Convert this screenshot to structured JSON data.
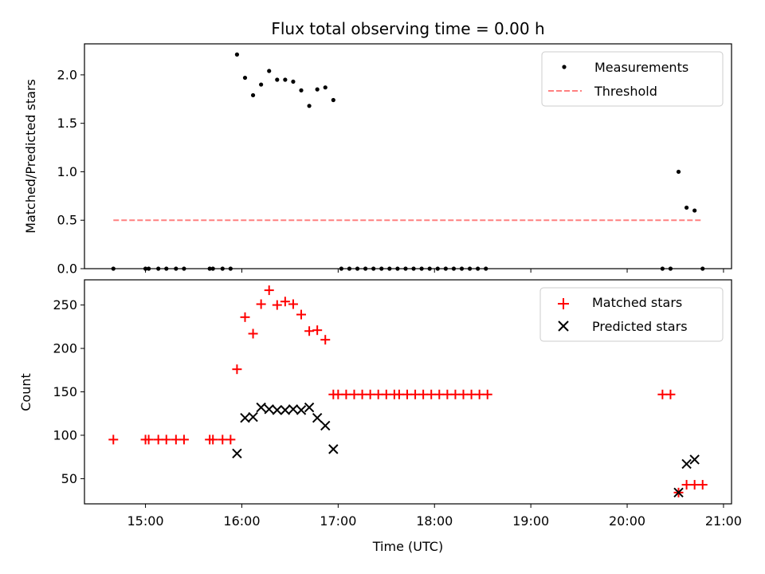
{
  "chart_data": [
    {
      "type": "scatter",
      "title": "Flux total observing time = 0.00 h",
      "xlabel": "",
      "ylabel": "Matched/Predicted stars",
      "xlim": [
        "14:22",
        "21:05"
      ],
      "ylim": [
        0,
        2.32
      ],
      "yticks": [
        0.0,
        0.5,
        1.0,
        1.5,
        2.0
      ],
      "yticklabels": [
        "0.0",
        "0.5",
        "1.0",
        "1.5",
        "2.0"
      ],
      "xticks": [
        "15:00",
        "16:00",
        "17:00",
        "18:00",
        "19:00",
        "20:00",
        "21:00"
      ],
      "xticklabels_visible": false,
      "legend_position": "top-right",
      "series": [
        {
          "name": "Measurements",
          "kind": "points",
          "color": "#000000",
          "x": [
            "14:40",
            "15:00",
            "15:02",
            "15:08",
            "15:13",
            "15:19",
            "15:24",
            "15:40",
            "15:42",
            "15:48",
            "15:53",
            "15:57",
            "16:02",
            "16:07",
            "16:12",
            "16:17",
            "16:22",
            "16:27",
            "16:32",
            "16:37",
            "16:42",
            "16:47",
            "16:52",
            "16:57",
            "17:02",
            "17:07",
            "17:12",
            "17:17",
            "17:22",
            "17:27",
            "17:32",
            "17:37",
            "17:42",
            "17:47",
            "17:52",
            "17:57",
            "18:02",
            "18:07",
            "18:12",
            "18:17",
            "18:22",
            "18:27",
            "18:32",
            "20:22",
            "20:27",
            "20:32",
            "20:37",
            "20:42",
            "20:47"
          ],
          "y": [
            0,
            0,
            0,
            0,
            0,
            0,
            0,
            0,
            0,
            0,
            0,
            2.21,
            1.97,
            1.79,
            1.9,
            2.04,
            1.95,
            1.95,
            1.93,
            1.84,
            1.68,
            1.85,
            1.87,
            1.74,
            0,
            0,
            0,
            0,
            0,
            0,
            0,
            0,
            0,
            0,
            0,
            0,
            0,
            0,
            0,
            0,
            0,
            0,
            0,
            0,
            0,
            1.0,
            0.63,
            0.6,
            0
          ]
        },
        {
          "name": "Threshold",
          "kind": "dashed-line",
          "color": "#ff8080",
          "x": [
            "14:40",
            "20:47"
          ],
          "y": [
            0.5,
            0.5
          ]
        }
      ]
    },
    {
      "type": "scatter",
      "title": "",
      "xlabel": "Time (UTC)",
      "ylabel": "Count",
      "xlim": [
        "14:22",
        "21:05"
      ],
      "ylim": [
        21,
        279
      ],
      "yticks": [
        50,
        100,
        150,
        200,
        250
      ],
      "yticklabels": [
        "50",
        "100",
        "150",
        "200",
        "250"
      ],
      "xticks": [
        "15:00",
        "16:00",
        "17:00",
        "18:00",
        "19:00",
        "20:00",
        "21:00"
      ],
      "xticklabels": [
        "15:00",
        "16:00",
        "17:00",
        "18:00",
        "19:00",
        "20:00",
        "21:00"
      ],
      "legend_position": "top-right",
      "series": [
        {
          "name": "Matched stars",
          "kind": "plus",
          "color": "#ff0000",
          "x": [
            "14:40",
            "15:00",
            "15:02",
            "15:08",
            "15:13",
            "15:19",
            "15:24",
            "15:40",
            "15:42",
            "15:48",
            "15:53",
            "15:57",
            "16:02",
            "16:07",
            "16:12",
            "16:17",
            "16:22",
            "16:27",
            "16:32",
            "16:37",
            "16:42",
            "16:47",
            "16:52",
            "16:57",
            "17:00",
            "17:05",
            "17:10",
            "17:15",
            "17:20",
            "17:25",
            "17:30",
            "17:35",
            "17:38",
            "17:43",
            "17:48",
            "17:53",
            "17:58",
            "18:03",
            "18:08",
            "18:13",
            "18:18",
            "18:23",
            "18:28",
            "18:33",
            "20:22",
            "20:27",
            "20:32",
            "20:37",
            "20:42",
            "20:47"
          ],
          "y": [
            95,
            95,
            95,
            95,
            95,
            95,
            95,
            95,
            95,
            95,
            95,
            176,
            236,
            217,
            251,
            267,
            250,
            254,
            251,
            239,
            220,
            221,
            210,
            147,
            147,
            147,
            147,
            147,
            147,
            147,
            147,
            147,
            147,
            147,
            147,
            147,
            147,
            147,
            147,
            147,
            147,
            147,
            147,
            147,
            147,
            147,
            34,
            43,
            43,
            43
          ]
        },
        {
          "name": "Predicted stars",
          "kind": "x",
          "color": "#000000",
          "x": [
            "15:57",
            "16:02",
            "16:07",
            "16:12",
            "16:17",
            "16:22",
            "16:27",
            "16:32",
            "16:37",
            "16:42",
            "16:47",
            "16:52",
            "16:57",
            "20:32",
            "20:37",
            "20:42"
          ],
          "y": [
            79,
            120,
            121,
            132,
            130,
            129,
            129,
            130,
            129,
            132,
            120,
            111,
            84,
            34,
            67,
            72
          ]
        }
      ]
    }
  ]
}
